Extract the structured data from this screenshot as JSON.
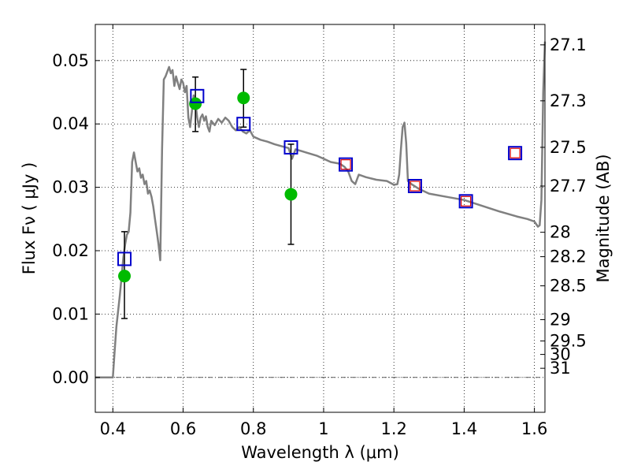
{
  "chart_data": {
    "type": "line",
    "title": "",
    "xlabel": "Wavelength  λ (μm)",
    "ylabel": "Flux  Fν  ( μJy )",
    "ylabel_right": "Magnitude (AB)",
    "xlim": [
      0.35,
      1.63
    ],
    "ylim": [
      -0.0055,
      0.0557
    ],
    "grid": true,
    "x_ticks": [
      0.4,
      0.6,
      0.8,
      1.0,
      1.2,
      1.4,
      1.6
    ],
    "x_tick_labels": [
      "0.4",
      "0.6",
      "0.8",
      "1",
      "1.2",
      "1.4",
      "1.6"
    ],
    "y_ticks": [
      0.0,
      0.01,
      0.02,
      0.03,
      0.04,
      0.05
    ],
    "y_tick_labels": [
      "0.00",
      "0.01",
      "0.02",
      "0.03",
      "0.04",
      "0.05"
    ],
    "right_ticks": [
      {
        "label": "27.1",
        "value": 27.1
      },
      {
        "label": "27.3",
        "value": 27.3
      },
      {
        "label": "27.5",
        "value": 27.5
      },
      {
        "label": "27.7",
        "value": 27.7
      },
      {
        "label": "28",
        "value": 28.0
      },
      {
        "label": "28.2",
        "value": 28.2
      },
      {
        "label": "28.5",
        "value": 28.5
      },
      {
        "label": "29",
        "value": 29.0
      },
      {
        "label": "29.5",
        "value": 29.5
      },
      {
        "label": "30",
        "value": 30.0
      },
      {
        "label": "31",
        "value": 31.0
      }
    ],
    "series": [
      {
        "name": "model SED",
        "kind": "line",
        "color": "#808080",
        "x": [
          0.35,
          0.39,
          0.4,
          0.405,
          0.41,
          0.42,
          0.425,
          0.43,
          0.435,
          0.44,
          0.445,
          0.45,
          0.455,
          0.46,
          0.465,
          0.47,
          0.475,
          0.48,
          0.485,
          0.49,
          0.495,
          0.5,
          0.505,
          0.51,
          0.515,
          0.52,
          0.525,
          0.53,
          0.535,
          0.54,
          0.545,
          0.55,
          0.56,
          0.565,
          0.57,
          0.575,
          0.58,
          0.585,
          0.59,
          0.595,
          0.6,
          0.605,
          0.61,
          0.615,
          0.62,
          0.625,
          0.63,
          0.635,
          0.64,
          0.645,
          0.65,
          0.655,
          0.66,
          0.665,
          0.67,
          0.675,
          0.68,
          0.69,
          0.7,
          0.71,
          0.72,
          0.73,
          0.74,
          0.75,
          0.76,
          0.77,
          0.78,
          0.79,
          0.8,
          0.82,
          0.84,
          0.86,
          0.88,
          0.9,
          0.91,
          0.92,
          0.95,
          0.98,
          1.0,
          1.02,
          1.04,
          1.05,
          1.06,
          1.07,
          1.08,
          1.09,
          1.1,
          1.12,
          1.15,
          1.18,
          1.2,
          1.21,
          1.215,
          1.22,
          1.225,
          1.23,
          1.235,
          1.24,
          1.25,
          1.27,
          1.3,
          1.35,
          1.4,
          1.45,
          1.5,
          1.55,
          1.58,
          1.6,
          1.61,
          1.615,
          1.62,
          1.625,
          1.63
        ],
        "y": [
          0.0,
          0.0,
          0.0,
          0.004,
          0.008,
          0.013,
          0.016,
          0.019,
          0.021,
          0.0225,
          0.023,
          0.026,
          0.034,
          0.0355,
          0.034,
          0.0325,
          0.033,
          0.0315,
          0.032,
          0.0305,
          0.031,
          0.029,
          0.0295,
          0.0285,
          0.027,
          0.025,
          0.023,
          0.021,
          0.0185,
          0.036,
          0.047,
          0.0475,
          0.049,
          0.048,
          0.0485,
          0.046,
          0.0475,
          0.0465,
          0.0455,
          0.047,
          0.0465,
          0.045,
          0.046,
          0.041,
          0.0395,
          0.042,
          0.0445,
          0.0435,
          0.041,
          0.0395,
          0.041,
          0.0415,
          0.0405,
          0.0412,
          0.0395,
          0.0388,
          0.0405,
          0.0398,
          0.0408,
          0.0402,
          0.041,
          0.0405,
          0.0395,
          0.039,
          0.0395,
          0.0388,
          0.0385,
          0.039,
          0.038,
          0.0375,
          0.0372,
          0.0368,
          0.0365,
          0.0362,
          0.0345,
          0.036,
          0.0355,
          0.035,
          0.0345,
          0.034,
          0.0338,
          0.0336,
          0.0332,
          0.0325,
          0.031,
          0.0305,
          0.032,
          0.0316,
          0.0312,
          0.031,
          0.0304,
          0.0305,
          0.032,
          0.036,
          0.0395,
          0.0402,
          0.037,
          0.031,
          0.0305,
          0.0298,
          0.029,
          0.0285,
          0.028,
          0.0271,
          0.0262,
          0.0254,
          0.025,
          0.0246,
          0.0238,
          0.024,
          0.028,
          0.045,
          0.053
        ]
      },
      {
        "name": "observed",
        "kind": "scatter-errorbar",
        "color": "#00bb00",
        "x": [
          0.433,
          0.635,
          0.772,
          0.907
        ],
        "y": [
          0.016,
          0.0432,
          0.0441,
          0.0289
        ],
        "yerr_low": [
          0.0093,
          0.0388,
          0.0395,
          0.021
        ],
        "yerr_high": [
          0.023,
          0.0474,
          0.0486,
          0.0368
        ]
      },
      {
        "name": "model photometry",
        "kind": "square-marker",
        "color": "#0000cc",
        "x": [
          0.433,
          0.64,
          0.772,
          0.907,
          1.063,
          1.26,
          1.405,
          1.545
        ],
        "y": [
          0.0187,
          0.0444,
          0.04,
          0.0363,
          0.0336,
          0.0302,
          0.0278,
          0.0354
        ]
      },
      {
        "name": "model photometry (red)",
        "kind": "square-marker",
        "color": "#dd0000",
        "x": [
          1.063,
          1.26,
          1.405,
          1.545
        ],
        "y": [
          0.0336,
          0.0302,
          0.0278,
          0.0354
        ]
      }
    ]
  }
}
